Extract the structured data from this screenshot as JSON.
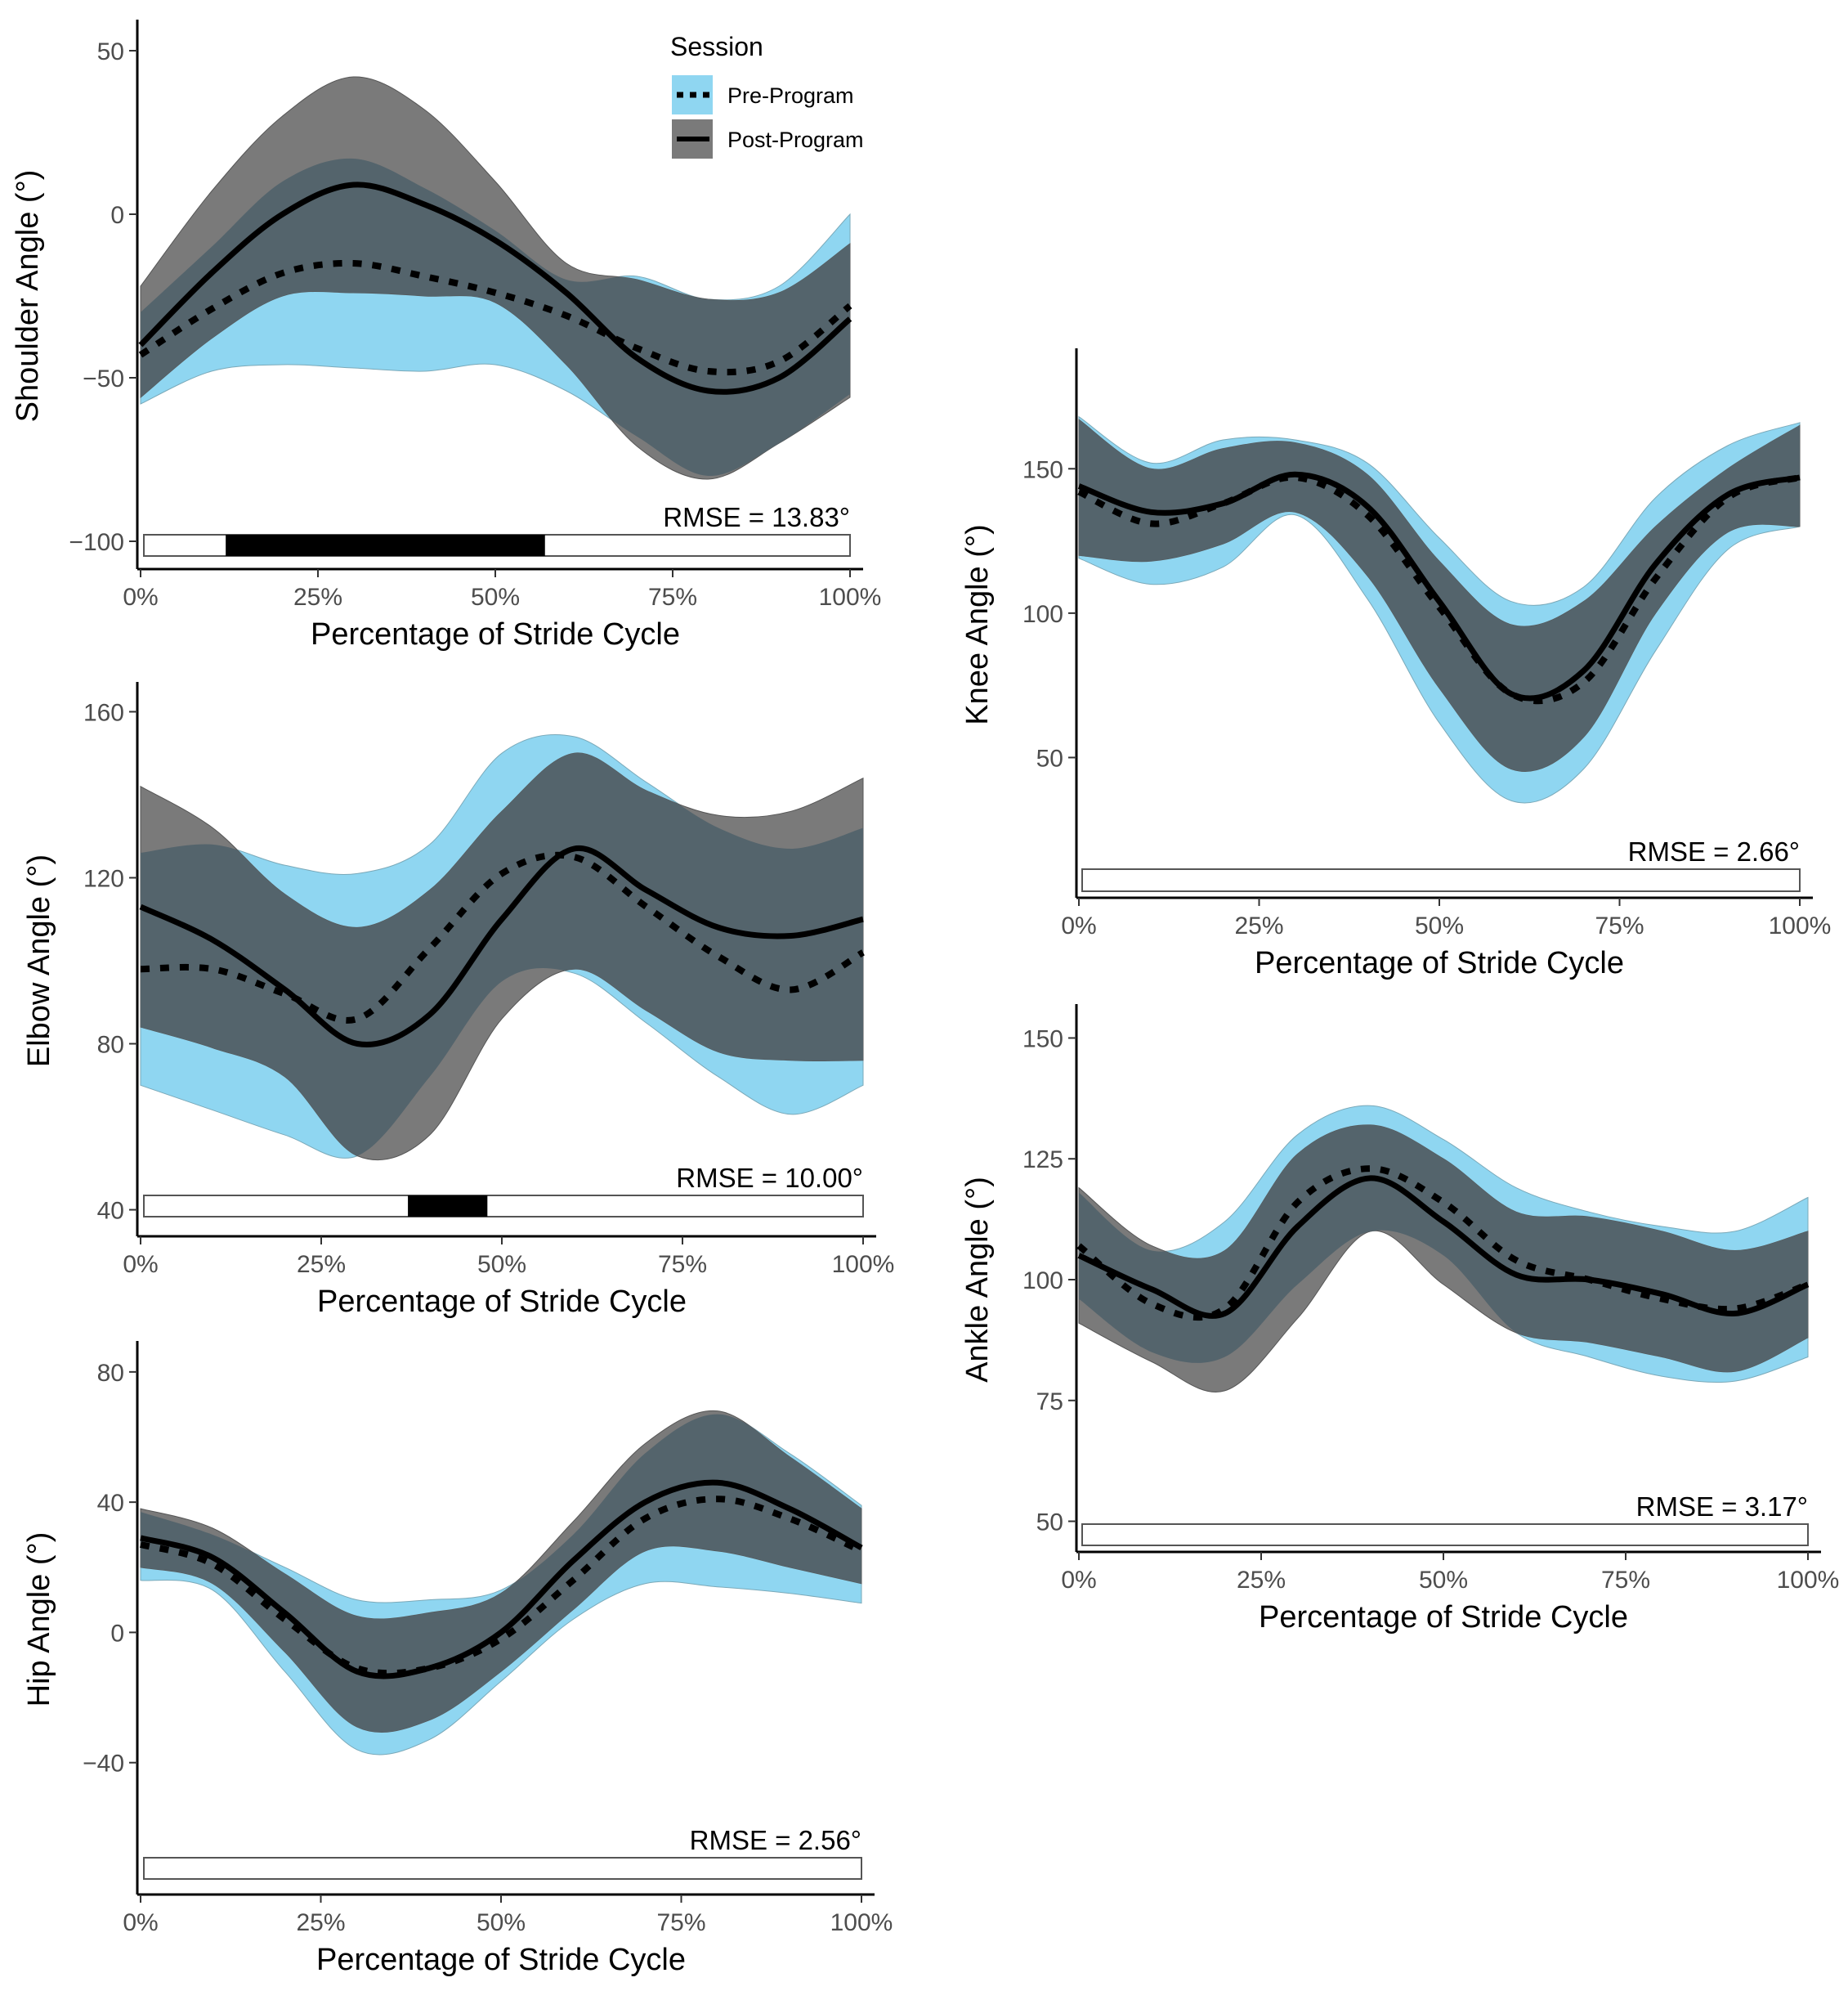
{
  "colors": {
    "pre_band": "#8fd6f1",
    "post_band": "#4d4d4d",
    "overlap_band": "#54646c",
    "mean_line": "#000000",
    "axis": "#000000",
    "sig_bar": "#000000"
  },
  "legend": {
    "title": "Session",
    "entries": [
      {
        "label": "Pre-Program",
        "style": "dotted",
        "fill": "#8fd6f1"
      },
      {
        "label": "Post-Program",
        "style": "solid",
        "fill": "#7a7a7a"
      }
    ]
  },
  "chart_data": [
    {
      "id": "shoulder",
      "type": "line",
      "xlabel": "Percentage of Stride Cycle",
      "ylabel": "Shoulder Angle (°)",
      "x_ticks": [
        "0%",
        "25%",
        "50%",
        "75%",
        "100%"
      ],
      "xlim": [
        0,
        100
      ],
      "ylim": [
        -108,
        58
      ],
      "y_ticks": [
        -100,
        -50,
        0,
        50
      ],
      "x": [
        0,
        10,
        20,
        30,
        40,
        50,
        60,
        70,
        80,
        90,
        100
      ],
      "series": [
        {
          "name": "Pre-Program",
          "mean": [
            -43,
            -29,
            -18,
            -15,
            -19,
            -24,
            -31,
            -41,
            -48,
            -45,
            -28
          ],
          "lower": [
            -58,
            -48,
            -46,
            -47,
            -48,
            -46,
            -54,
            -68,
            -80,
            -70,
            -55
          ],
          "upper": [
            -30,
            -10,
            10,
            17,
            8,
            -5,
            -20,
            -19,
            -26,
            -22,
            0
          ]
        },
        {
          "name": "Post-Program",
          "mean": [
            -40,
            -18,
            0,
            9,
            3,
            -8,
            -24,
            -44,
            -54,
            -50,
            -32
          ],
          "lower": [
            -56,
            -38,
            -25,
            -24,
            -25,
            -27,
            -46,
            -71,
            -81,
            -70,
            -56
          ],
          "upper": [
            -22,
            7,
            30,
            42,
            32,
            10,
            -15,
            -20,
            -26,
            -24,
            -9
          ]
        }
      ],
      "significant_ranges": [
        [
          12,
          57
        ]
      ],
      "rmse_label": "RMSE = 13.83°"
    },
    {
      "id": "elbow",
      "type": "line",
      "xlabel": "Percentage of Stride Cycle",
      "ylabel": "Elbow Angle (°)",
      "x_ticks": [
        "0%",
        "25%",
        "50%",
        "75%",
        "100%"
      ],
      "xlim": [
        0,
        100
      ],
      "ylim": [
        34,
        166
      ],
      "y_ticks": [
        40,
        80,
        120,
        160
      ],
      "x": [
        0,
        10,
        20,
        30,
        40,
        50,
        60,
        70,
        80,
        90,
        100
      ],
      "series": [
        {
          "name": "Pre-Program",
          "mean": [
            98,
            98,
            92,
            86,
            103,
            121,
            125,
            113,
            101,
            93,
            102
          ],
          "lower": [
            70,
            64,
            58,
            53,
            72,
            95,
            97,
            85,
            72,
            63,
            70
          ],
          "upper": [
            126,
            128,
            123,
            121,
            128,
            150,
            154,
            143,
            132,
            127,
            132
          ]
        },
        {
          "name": "Post-Program",
          "mean": [
            113,
            105,
            93,
            80,
            87,
            110,
            127,
            117,
            108,
            106,
            110
          ],
          "lower": [
            84,
            79,
            72,
            53,
            58,
            86,
            98,
            88,
            78,
            76,
            76
          ],
          "upper": [
            142,
            132,
            116,
            108,
            117,
            136,
            150,
            141,
            135,
            136,
            144
          ]
        }
      ],
      "significant_ranges": [
        [
          37,
          48
        ]
      ],
      "rmse_label": "RMSE = 10.00°"
    },
    {
      "id": "hip",
      "type": "line",
      "xlabel": "Percentage of Stride Cycle",
      "ylabel": "Hip Angle (°)",
      "x_ticks": [
        "0%",
        "25%",
        "50%",
        "75%",
        "100%"
      ],
      "xlim": [
        0,
        100
      ],
      "ylim": [
        -80,
        88
      ],
      "y_ticks": [
        -40,
        0,
        40,
        80
      ],
      "x": [
        0,
        10,
        20,
        30,
        40,
        50,
        60,
        70,
        80,
        90,
        100
      ],
      "series": [
        {
          "name": "Pre-Program",
          "mean": [
            27,
            21,
            4,
            -11,
            -11,
            -2,
            16,
            35,
            41,
            35,
            25
          ],
          "lower": [
            16,
            13,
            -12,
            -36,
            -33,
            -15,
            4,
            15,
            14,
            12,
            9
          ],
          "upper": [
            37,
            30,
            20,
            10,
            10,
            13,
            30,
            55,
            67,
            55,
            39
          ]
        },
        {
          "name": "Post-Program",
          "mean": [
            29,
            23,
            6,
            -12,
            -11,
            0,
            22,
            40,
            46,
            38,
            26
          ],
          "lower": [
            20,
            15,
            -6,
            -29,
            -27,
            -12,
            7,
            25,
            25,
            20,
            15
          ],
          "upper": [
            38,
            32,
            18,
            5,
            6,
            12,
            34,
            58,
            68,
            54,
            38
          ]
        }
      ],
      "significant_ranges": [],
      "rmse_label": "RMSE = 2.56°"
    },
    {
      "id": "knee",
      "type": "line",
      "xlabel": "Percentage of Stride Cycle",
      "ylabel": "Knee Angle (°)",
      "x_ticks": [
        "0%",
        "25%",
        "50%",
        "75%",
        "100%"
      ],
      "xlim": [
        0,
        100
      ],
      "ylim": [
        2,
        190
      ],
      "y_ticks": [
        50,
        100,
        150
      ],
      "x": [
        0,
        10,
        20,
        30,
        40,
        50,
        60,
        70,
        80,
        90,
        100
      ],
      "series": [
        {
          "name": "Pre-Program",
          "mean": [
            142,
            131,
            138,
            147,
            134,
            102,
            72,
            76,
            112,
            140,
            147
          ],
          "lower": [
            119,
            110,
            116,
            134,
            105,
            62,
            35,
            46,
            87,
            122,
            130
          ],
          "upper": [
            168,
            152,
            160,
            160,
            152,
            126,
            104,
            109,
            140,
            158,
            166
          ]
        },
        {
          "name": "Post-Program",
          "mean": [
            144,
            135,
            138,
            148,
            137,
            104,
            72,
            80,
            117,
            141,
            147
          ],
          "lower": [
            120,
            118,
            124,
            135,
            113,
            74,
            46,
            57,
            100,
            128,
            130
          ],
          "upper": [
            167,
            150,
            157,
            159,
            148,
            118,
            96,
            104,
            130,
            150,
            165
          ]
        }
      ],
      "significant_ranges": [],
      "rmse_label": "RMSE = 2.66°"
    },
    {
      "id": "ankle",
      "type": "line",
      "xlabel": "Percentage of Stride Cycle",
      "ylabel": "Ankle Angle (°)",
      "x_ticks": [
        "0%",
        "25%",
        "50%",
        "75%",
        "100%"
      ],
      "xlim": [
        0,
        100
      ],
      "ylim": [
        44,
        156
      ],
      "y_ticks": [
        50,
        75,
        100,
        125,
        150
      ],
      "x": [
        0,
        10,
        20,
        30,
        40,
        50,
        60,
        70,
        80,
        90,
        100
      ],
      "series": [
        {
          "name": "Pre-Program",
          "mean": [
            107,
            95,
            94,
            116,
            123,
            116,
            104,
            100,
            96,
            94,
            99
          ],
          "lower": [
            96,
            85,
            84,
            99,
            110,
            105,
            89,
            84,
            80,
            79,
            84
          ],
          "upper": [
            118,
            106,
            112,
            130,
            136,
            129,
            119,
            114,
            111,
            110,
            117
          ]
        },
        {
          "name": "Post-Program",
          "mean": [
            105,
            98,
            93,
            111,
            121,
            112,
            101,
            100,
            97,
            93,
            99
          ],
          "lower": [
            91,
            83,
            77,
            92,
            110,
            99,
            89,
            87,
            84,
            81,
            88
          ],
          "upper": [
            119,
            107,
            106,
            126,
            132,
            125,
            114,
            113,
            110,
            106,
            110
          ]
        }
      ],
      "significant_ranges": [],
      "rmse_label": "RMSE = 3.17°"
    }
  ]
}
